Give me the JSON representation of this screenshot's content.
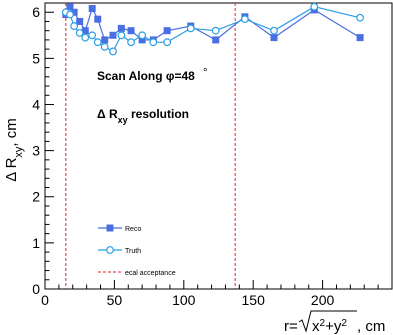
{
  "chart_data": {
    "type": "line",
    "ylabel_main": "Δ R",
    "ylabel_sub": "xy",
    "ylabel_unit": ", cm",
    "xlabel_prefix": "r=",
    "xlabel_radicand_x": "x",
    "xlabel_radicand_plus": "+y",
    "xlabel_exp": "2",
    "xlabel_unit": ", cm",
    "xlim": [
      0,
      250
    ],
    "ylim": [
      0,
      6.2
    ],
    "xticks": [
      0,
      50,
      100,
      150,
      200
    ],
    "yticks": [
      0,
      1,
      2,
      3,
      4,
      5,
      6
    ],
    "annotations": {
      "scan_text": "Scan Along ",
      "scan_phi": "φ=48",
      "scan_degree": "°",
      "resolution_main": "Δ R",
      "resolution_sub": "xy",
      "resolution_tail": " resolution"
    },
    "vlines": [
      15,
      137
    ],
    "series": [
      {
        "name": "Reco",
        "color": "#4a6fe3",
        "marker": "square",
        "x": [
          15,
          18,
          21,
          25,
          29,
          34,
          38,
          43,
          49,
          55,
          62,
          70,
          78,
          88,
          105,
          123,
          144,
          165,
          194,
          227
        ],
        "y": [
          5.95,
          6.12,
          6.0,
          5.8,
          5.6,
          6.08,
          5.85,
          5.4,
          5.5,
          5.65,
          5.6,
          5.4,
          5.4,
          5.6,
          5.7,
          5.4,
          5.9,
          5.45,
          6.05,
          5.45
        ]
      },
      {
        "name": "Truth",
        "color": "#2b9fe6",
        "marker": "circle",
        "x": [
          15,
          18,
          21,
          25,
          29,
          34,
          38,
          43,
          49,
          55,
          62,
          70,
          78,
          88,
          105,
          123,
          144,
          165,
          194,
          227
        ],
        "y": [
          6.0,
          5.95,
          5.7,
          5.55,
          5.45,
          5.5,
          5.35,
          5.25,
          5.15,
          5.5,
          5.35,
          5.5,
          5.35,
          5.35,
          5.65,
          5.6,
          5.85,
          5.6,
          6.12,
          5.88
        ]
      }
    ],
    "legend": {
      "placement": "bottom-left",
      "entries": [
        {
          "label": "Reco",
          "kind": "square",
          "color": "#4a6fe3"
        },
        {
          "label": "Truth",
          "kind": "circle",
          "color": "#2b9fe6"
        },
        {
          "label": "ecal acceptance",
          "kind": "dashed",
          "color": "#e0242b"
        }
      ]
    }
  }
}
